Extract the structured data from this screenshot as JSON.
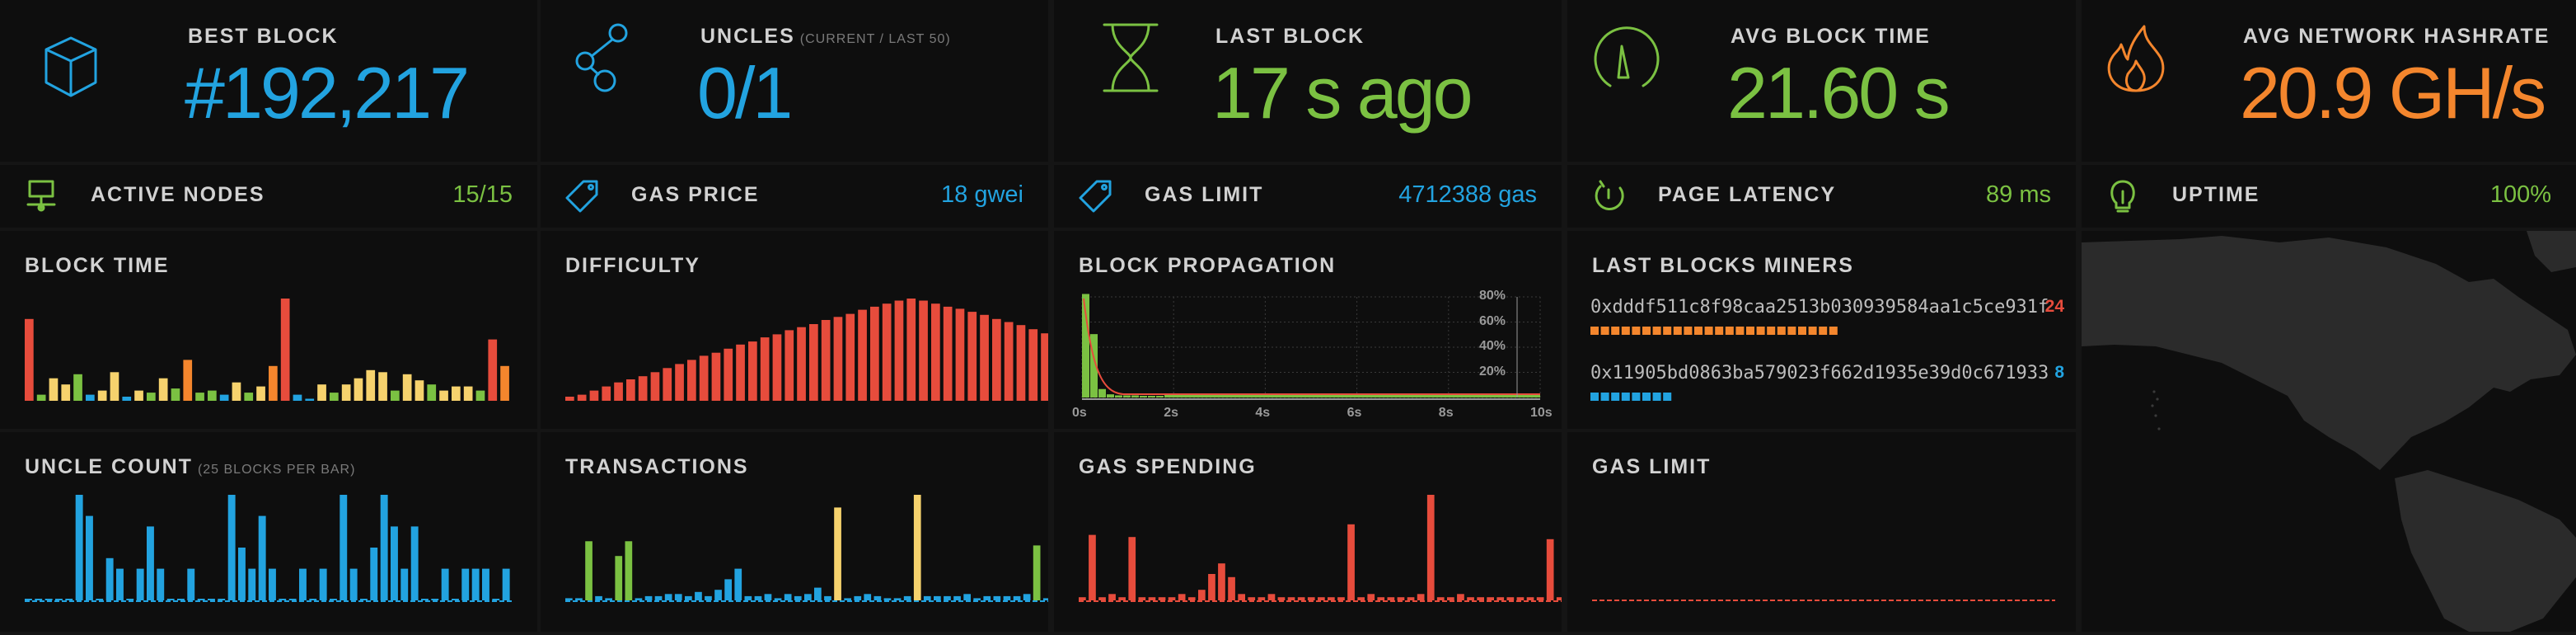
{
  "stats": [
    {
      "label": "BEST BLOCK",
      "value": "#192,217",
      "color": "#22a3e0",
      "icon": "cube-icon"
    },
    {
      "label": "UNCLES",
      "sub": "(CURRENT / LAST 50)",
      "value": "0/1",
      "color": "#22a3e0",
      "icon": "uncles-icon"
    },
    {
      "label": "LAST BLOCK",
      "value": "17 s ago",
      "color": "#7bc142",
      "icon": "hourglass-icon"
    },
    {
      "label": "AVG BLOCK TIME",
      "value": "21.60 s",
      "color": "#7bc142",
      "icon": "gauge-icon"
    },
    {
      "label": "AVG NETWORK HASHRATE",
      "value": "20.9 GH/s",
      "color": "#f4862d",
      "icon": "flame-icon"
    }
  ],
  "mini": [
    {
      "label": "ACTIVE NODES",
      "value": "15/15",
      "color": "#7bc142",
      "icon": "nodes-icon"
    },
    {
      "label": "GAS PRICE",
      "value": "18 gwei",
      "color": "#22a3e0",
      "icon": "tag-icon"
    },
    {
      "label": "GAS LIMIT",
      "value": "4712388 gas",
      "color": "#22a3e0",
      "icon": "tag-icon"
    },
    {
      "label": "PAGE LATENCY",
      "value": "89 ms",
      "color": "#7bc142",
      "icon": "stopwatch-icon"
    },
    {
      "label": "UPTIME",
      "value": "100%",
      "color": "#7bc142",
      "icon": "lightbulb-icon"
    }
  ],
  "panels": {
    "block_time": {
      "label": "BLOCK TIME"
    },
    "difficulty": {
      "label": "DIFFICULTY"
    },
    "block_propagation": {
      "label": "BLOCK PROPAGATION"
    },
    "last_blocks_miners": {
      "label": "LAST BLOCKS MINERS"
    },
    "uncle_count": {
      "label": "UNCLE COUNT",
      "sub": "(25 BLOCKS PER BAR)"
    },
    "transactions": {
      "label": "TRANSACTIONS"
    },
    "gas_spending": {
      "label": "GAS SPENDING"
    },
    "gas_limit": {
      "label": "GAS LIMIT"
    }
  },
  "miners": [
    {
      "address": "0xdddf511c8f98caa2513b030939584aa1c5ce931f",
      "count": "24",
      "blocks": 24,
      "color": "#f4862d",
      "count_color": "#e74c3c"
    },
    {
      "address": "0x11905bd0863ba579023f662d1935e39d0c671933",
      "count": "8",
      "blocks": 8,
      "color": "#22a3e0",
      "count_color": "#22a3e0"
    }
  ],
  "colors": {
    "green": "#7bc142",
    "yellow": "#f6d26d",
    "orange": "#f4862d",
    "red": "#e74c3c",
    "blue": "#22a3e0"
  },
  "chart_data": [
    {
      "id": "block-time",
      "type": "bar",
      "values": [
        0.8,
        0.06,
        0.22,
        0.16,
        0.26,
        0.06,
        0.1,
        0.28,
        0.04,
        0.1,
        0.08,
        0.22,
        0.12,
        0.4,
        0.08,
        0.1,
        0.06,
        0.18,
        0.08,
        0.14,
        0.34,
        1.0,
        0.06,
        0.02,
        0.16,
        0.08,
        0.16,
        0.22,
        0.3,
        0.28,
        0.1,
        0.26,
        0.2,
        0.16,
        0.1,
        0.14,
        0.14,
        0.1,
        0.6,
        0.34
      ],
      "colors": [
        "r",
        "g",
        "y",
        "y",
        "g",
        "b",
        "y",
        "y",
        "b",
        "y",
        "g",
        "y",
        "g",
        "o",
        "g",
        "g",
        "b",
        "y",
        "g",
        "y",
        "o",
        "r",
        "b",
        "b",
        "y",
        "g",
        "y",
        "y",
        "y",
        "y",
        "g",
        "y",
        "y",
        "g",
        "y",
        "y",
        "y",
        "g",
        "r",
        "o"
      ]
    },
    {
      "id": "difficulty",
      "type": "bar",
      "values": [
        0.04,
        0.06,
        0.1,
        0.14,
        0.18,
        0.21,
        0.24,
        0.28,
        0.32,
        0.36,
        0.4,
        0.44,
        0.47,
        0.51,
        0.55,
        0.58,
        0.62,
        0.65,
        0.69,
        0.72,
        0.75,
        0.79,
        0.82,
        0.85,
        0.89,
        0.92,
        0.95,
        0.98,
        1.0,
        0.98,
        0.95,
        0.92,
        0.9,
        0.87,
        0.84,
        0.8,
        0.77,
        0.74,
        0.7,
        0.66
      ],
      "colors": "r"
    },
    {
      "id": "block-propagation",
      "type": "bar+line",
      "xticks": [
        "0s",
        "2s",
        "4s",
        "6s",
        "8s",
        "10s"
      ],
      "yticks": [
        "80%",
        "60%",
        "40%",
        "20%"
      ]
    },
    {
      "id": "uncle-count",
      "type": "bar",
      "values": [
        0,
        0,
        0,
        0,
        0,
        1,
        0.8,
        0,
        0.4,
        0.3,
        0,
        0.3,
        0.7,
        0.3,
        0,
        0,
        0.3,
        0,
        0,
        0,
        1,
        0.5,
        0.3,
        0.8,
        0.3,
        0,
        0,
        0.3,
        0,
        0.3,
        0,
        1,
        0.3,
        0,
        0.5,
        1,
        0.7,
        0.3,
        0.7,
        0,
        0,
        0.3,
        0,
        0.3,
        0.3,
        0.3,
        0,
        0.3
      ],
      "colors": "b"
    },
    {
      "id": "transactions",
      "type": "bar",
      "values": [
        0.02,
        0.02,
        0.56,
        0.04,
        0.02,
        0.42,
        0.56,
        0.02,
        0.04,
        0.04,
        0.06,
        0.06,
        0.04,
        0.08,
        0.04,
        0.1,
        0.2,
        0.3,
        0.04,
        0.04,
        0.06,
        0.02,
        0.06,
        0.04,
        0.06,
        0.12,
        0.04,
        0.88,
        0.02,
        0.04,
        0.06,
        0.04,
        0.02,
        0.02,
        0.04,
        1.0,
        0.04,
        0.04,
        0.04,
        0.04,
        0.06,
        0.02,
        0.04,
        0.04,
        0.04,
        0.04,
        0.06,
        0.52,
        0.02
      ],
      "colors": [
        "b",
        "b",
        "g",
        "b",
        "b",
        "g",
        "g",
        "b",
        "b",
        "b",
        "b",
        "b",
        "b",
        "b",
        "b",
        "b",
        "b",
        "b",
        "b",
        "b",
        "b",
        "b",
        "b",
        "b",
        "b",
        "b",
        "b",
        "y",
        "b",
        "b",
        "b",
        "b",
        "b",
        "b",
        "b",
        "y",
        "b",
        "b",
        "b",
        "b",
        "b",
        "b",
        "b",
        "b",
        "b",
        "b",
        "b",
        "g",
        "b"
      ]
    },
    {
      "id": "gas-spending",
      "type": "bar",
      "values": [
        0.03,
        0.62,
        0.03,
        0.06,
        0.03,
        0.6,
        0.03,
        0.03,
        0.03,
        0.03,
        0.06,
        0.03,
        0.1,
        0.25,
        0.35,
        0.22,
        0.06,
        0.03,
        0.03,
        0.06,
        0.03,
        0.03,
        0.03,
        0.03,
        0.03,
        0.03,
        0.03,
        0.72,
        0.03,
        0.06,
        0.03,
        0.03,
        0.03,
        0.03,
        0.06,
        1.0,
        0.03,
        0.03,
        0.06,
        0.03,
        0.03,
        0.03,
        0.03,
        0.03,
        0.03,
        0.03,
        0.03,
        0.58,
        0.03
      ],
      "colors": "r"
    },
    {
      "id": "gas-limit",
      "type": "line",
      "values": [
        0.05
      ]
    }
  ]
}
